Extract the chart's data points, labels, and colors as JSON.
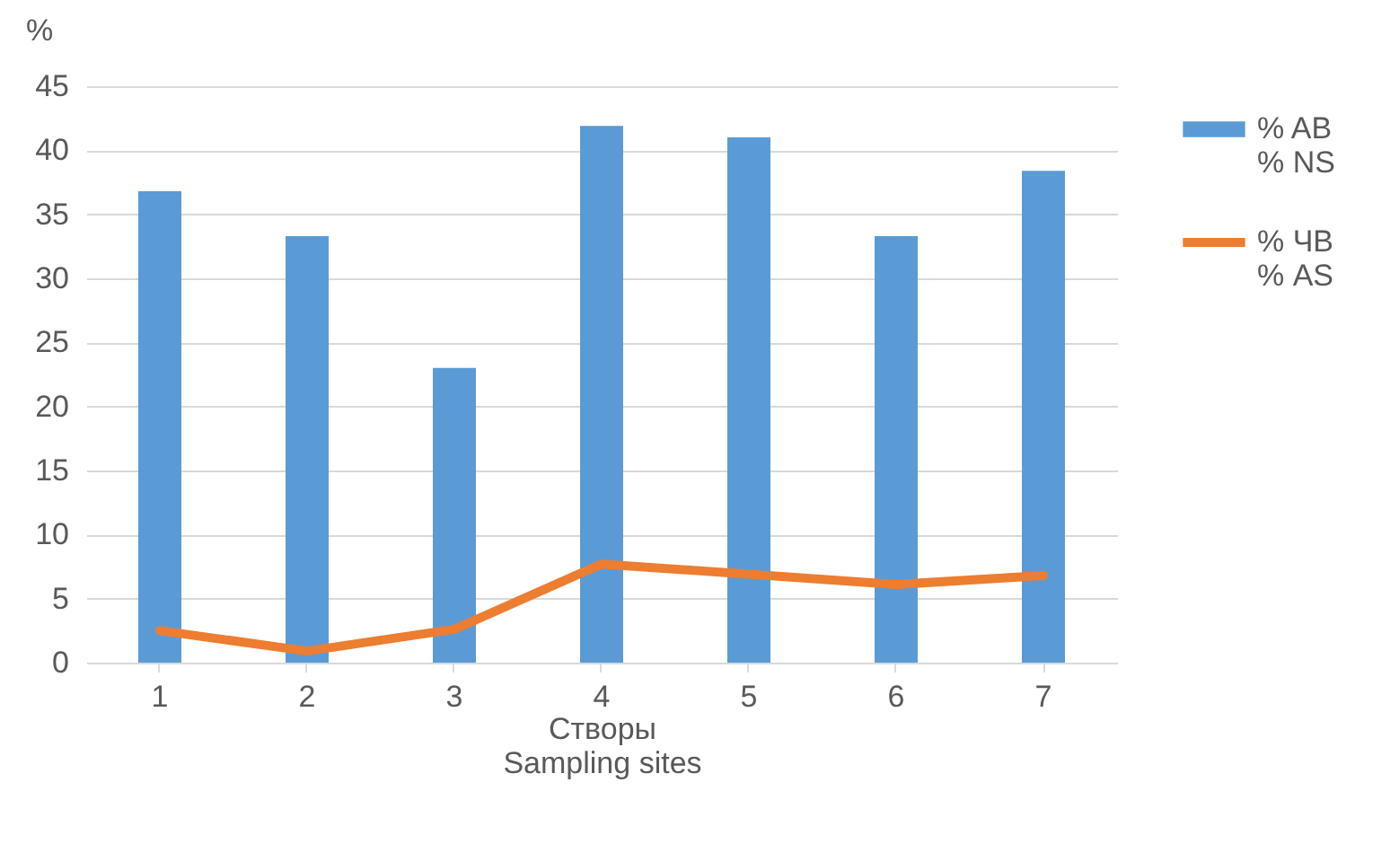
{
  "chart_data": {
    "type": "bar",
    "xlabel": "Створы\nSampling sites",
    "ylabel": "%",
    "categories": [
      "1",
      "2",
      "3",
      "4",
      "5",
      "6",
      "7"
    ],
    "series": [
      {
        "name": "% AB\n% NS",
        "color": "#5b9bd5",
        "values": [
          36.8,
          33.3,
          23.0,
          41.9,
          41.0,
          33.3,
          38.4
        ]
      },
      {
        "name": "% ЧВ\n% AS",
        "type": "line",
        "color": "#ed7d31",
        "values": [
          2.5,
          0.9,
          2.6,
          7.7,
          6.9,
          6.1,
          6.8
        ]
      }
    ],
    "ylim": [
      0,
      45
    ],
    "yticks": [
      0,
      5,
      10,
      15,
      20,
      25,
      30,
      35,
      40,
      45
    ],
    "grid": "y",
    "legend": "right"
  }
}
